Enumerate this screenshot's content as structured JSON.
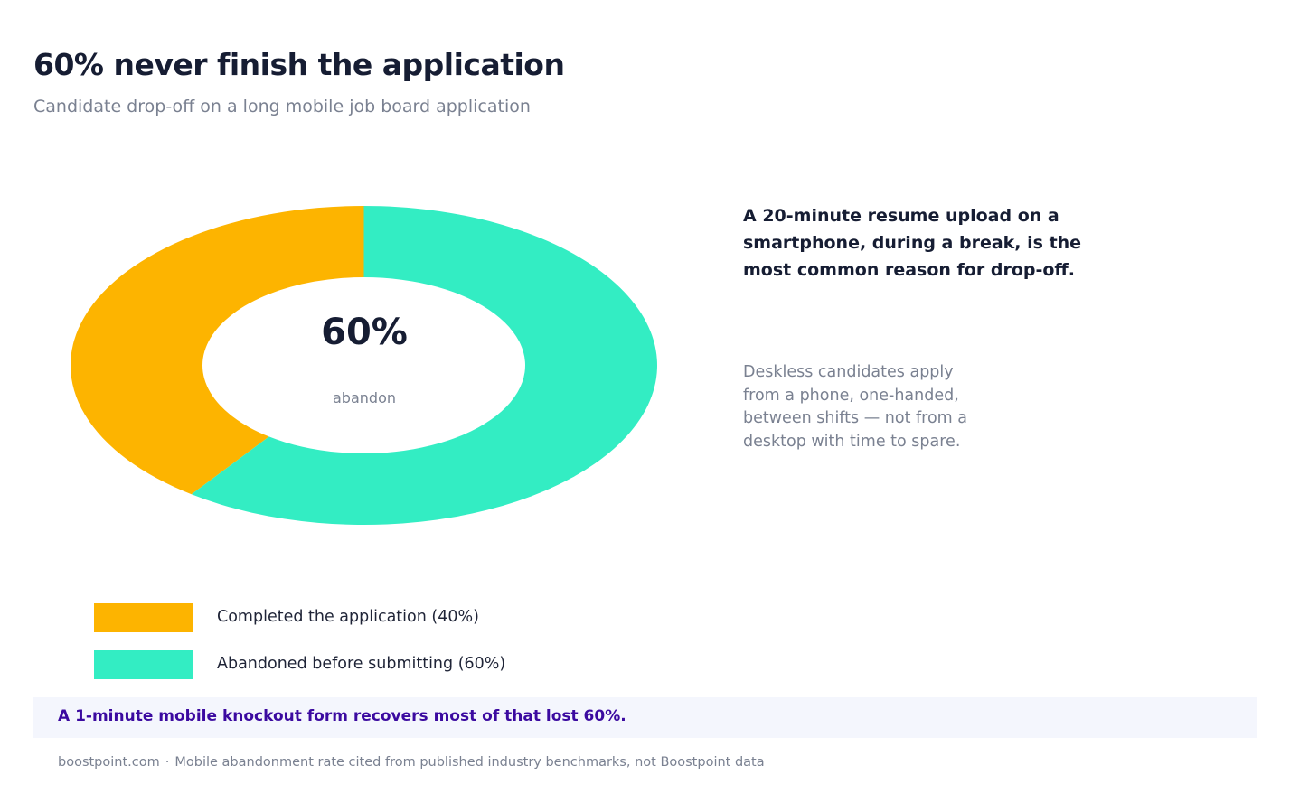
{
  "header": {
    "title": "60% never finish the application",
    "subtitle": "Candidate drop-off on a long mobile job board application"
  },
  "chart_data": {
    "type": "pie",
    "style": "donut",
    "center_value": "60%",
    "center_label": "abandon",
    "series": [
      {
        "name": "Completed the application (40%)",
        "value": 40,
        "color": "#fdb400"
      },
      {
        "name": "Abandoned before submitting (60%)",
        "value": 60,
        "color": "#33edc3"
      }
    ],
    "legend_placement": "bottom-left"
  },
  "callout": {
    "heading": "A 20-minute resume upload on a smartphone, during a break, is the most common reason for drop-off.",
    "body": "Deskless candidates apply from a phone, one-handed, between shifts — not from a desktop with time to spare."
  },
  "banner": {
    "text": "A 1-minute mobile knockout form recovers most of that lost 60%."
  },
  "footer": {
    "site": "boostpoint.com",
    "separator": "·",
    "source": "Mobile abandonment rate cited from published industry benchmarks, not Boostpoint data"
  }
}
